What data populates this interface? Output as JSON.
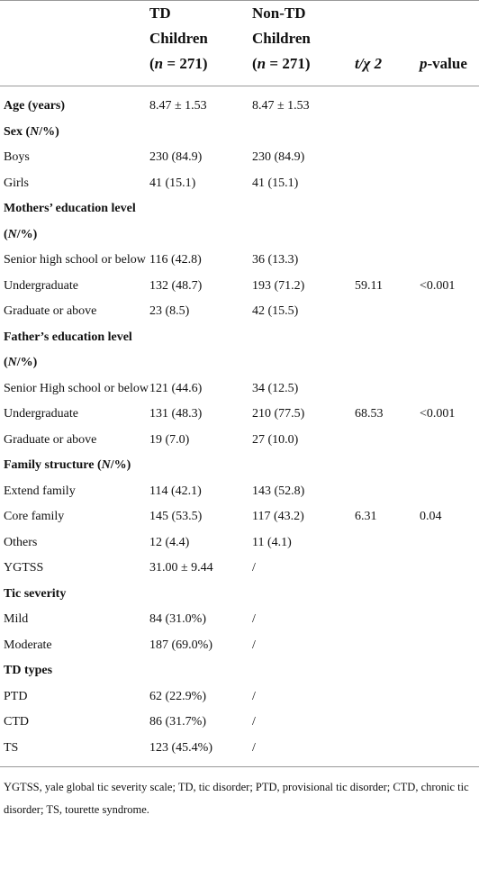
{
  "table": {
    "header": [
      [
        [
          "TD"
        ],
        [
          "Children"
        ],
        [
          "(",
          {
            "italic": "n"
          },
          " = 271)"
        ]
      ],
      [
        [
          "Non-TD"
        ],
        [
          "Children"
        ],
        [
          "(",
          {
            "italic": "n"
          },
          " = 271)"
        ]
      ],
      [
        [
          {
            "italic": "t/χ 2"
          }
        ]
      ],
      [
        [
          {
            "italic": "p"
          },
          "-value"
        ]
      ]
    ],
    "rows": [
      {
        "bold": true,
        "label": [
          "Age (years)"
        ],
        "cells": [
          "8.47 ± 1.53",
          "8.47 ± 1.53",
          null,
          null
        ]
      },
      {
        "bold": true,
        "label": [
          "Sex (",
          {
            "italic": "N"
          },
          "/%)"
        ],
        "cells": [
          null,
          null,
          null,
          null
        ]
      },
      {
        "bold": false,
        "label": [
          "Boys"
        ],
        "cells": [
          "230 (84.9)",
          "230 (84.9)",
          null,
          null
        ]
      },
      {
        "bold": false,
        "label": [
          "Girls"
        ],
        "cells": [
          "41 (15.1)",
          "41 (15.1)",
          null,
          null
        ]
      },
      {
        "bold": true,
        "label": [
          "Mothers’ education level (",
          {
            "italic": "N"
          },
          "/%)"
        ],
        "cells": [
          null,
          null,
          null,
          null
        ]
      },
      {
        "bold": false,
        "label": [
          "Senior high school or below"
        ],
        "cells": [
          "116 (42.8)",
          "36 (13.3)",
          null,
          null
        ]
      },
      {
        "bold": false,
        "label": [
          "Undergraduate"
        ],
        "cells": [
          "132 (48.7)",
          "193 (71.2)",
          "59.11",
          "<0.001"
        ]
      },
      {
        "bold": false,
        "label": [
          "Graduate or above"
        ],
        "cells": [
          "23 (8.5)",
          "42 (15.5)",
          null,
          null
        ]
      },
      {
        "bold": true,
        "label": [
          "Father’s education level (",
          {
            "italic": "N"
          },
          "/%)"
        ],
        "cells": [
          null,
          null,
          null,
          null
        ]
      },
      {
        "bold": false,
        "label": [
          "Senior High school or below"
        ],
        "cells": [
          "121 (44.6)",
          "34 (12.5)",
          null,
          null
        ]
      },
      {
        "bold": false,
        "label": [
          "Undergraduate"
        ],
        "cells": [
          "131 (48.3)",
          "210 (77.5)",
          "68.53",
          "<0.001"
        ]
      },
      {
        "bold": false,
        "label": [
          "Graduate or above"
        ],
        "cells": [
          "19 (7.0)",
          "27 (10.0)",
          null,
          null
        ]
      },
      {
        "bold": true,
        "label": [
          "Family structure (",
          {
            "italic": "N"
          },
          "/%)"
        ],
        "cells": [
          null,
          null,
          null,
          null
        ]
      },
      {
        "bold": false,
        "label": [
          "Extend family"
        ],
        "cells": [
          "114 (42.1)",
          "143 (52.8)",
          null,
          null
        ]
      },
      {
        "bold": false,
        "label": [
          "Core family"
        ],
        "cells": [
          "145 (53.5)",
          "117 (43.2)",
          "6.31",
          "0.04"
        ]
      },
      {
        "bold": false,
        "label": [
          "Others"
        ],
        "cells": [
          "12 (4.4)",
          "11 (4.1)",
          null,
          null
        ]
      },
      {
        "bold": false,
        "label": [
          "YGTSS"
        ],
        "cells": [
          "31.00 ± 9.44",
          "/",
          null,
          null
        ]
      },
      {
        "bold": true,
        "label": [
          "Tic severity"
        ],
        "cells": [
          null,
          null,
          null,
          null
        ]
      },
      {
        "bold": false,
        "label": [
          "Mild"
        ],
        "cells": [
          "84 (31.0%)",
          "/",
          null,
          null
        ]
      },
      {
        "bold": false,
        "label": [
          "Moderate"
        ],
        "cells": [
          "187 (69.0%)",
          "/",
          null,
          null
        ]
      },
      {
        "bold": true,
        "label": [
          "TD types"
        ],
        "cells": [
          null,
          null,
          null,
          null
        ]
      },
      {
        "bold": false,
        "label": [
          "PTD"
        ],
        "cells": [
          "62 (22.9%)",
          "/",
          null,
          null
        ]
      },
      {
        "bold": false,
        "label": [
          "CTD"
        ],
        "cells": [
          "86 (31.7%)",
          "/",
          null,
          null
        ]
      },
      {
        "bold": false,
        "label": [
          "TS"
        ],
        "cells": [
          "123 (45.4%)",
          "/",
          null,
          null
        ]
      }
    ],
    "footnote": "YGTSS, yale global tic severity scale; TD, tic disorder; PTD, provisional tic disorder; CTD, chronic tic disorder; TS, tourette syndrome."
  }
}
